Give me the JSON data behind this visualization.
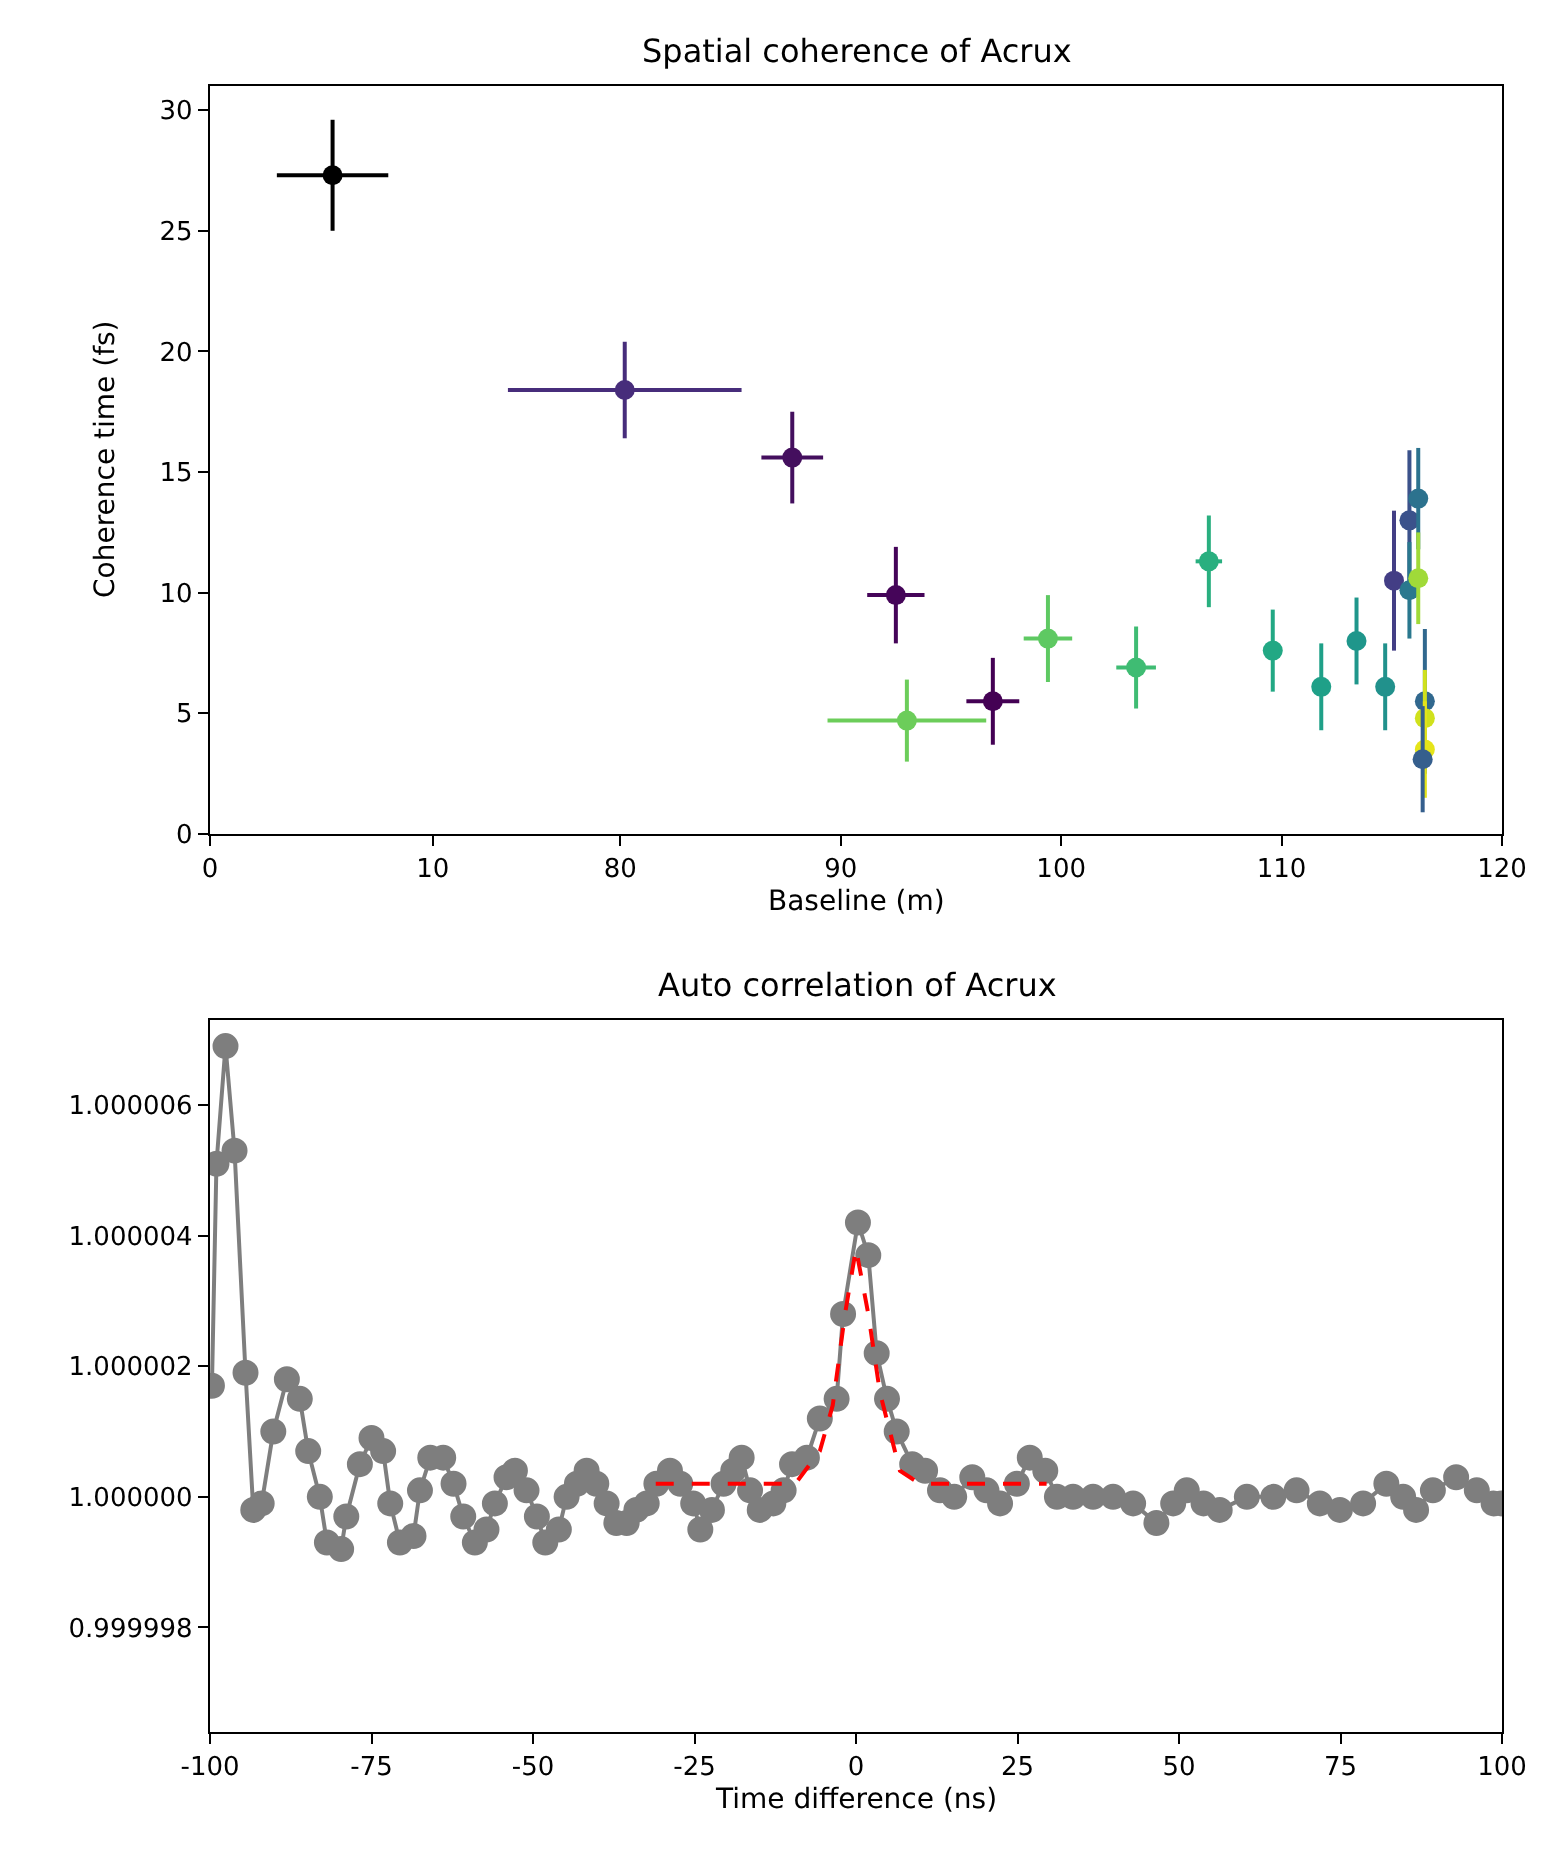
{
  "chart_data": [
    {
      "type": "scatter",
      "marker": "circle",
      "ylabel": "Coherence time (fs)",
      "xlim": [
        0,
        10.5
      ],
      "xticks": [
        0,
        10
      ],
      "ylim": [
        0,
        31
      ],
      "yticks": [
        0,
        5,
        10,
        15,
        20,
        25,
        30
      ],
      "series": [
        {
          "x": [
            5.5
          ],
          "values": [
            27.3
          ],
          "colors": [
            "#000000"
          ],
          "errors": [
            2.3
          ],
          "xerrors": [
            2.5
          ]
        }
      ]
    },
    {
      "type": "scatter",
      "marker": "circle",
      "title": "Spatial coherence of Acrux",
      "xlabel": "Baseline (m)",
      "xlim": [
        72,
        120
      ],
      "xticks": [
        80,
        90,
        100,
        110,
        120
      ],
      "ylim": [
        0,
        31
      ],
      "tick_labels": "x",
      "series": [
        {
          "x": [
            80.2,
            87.8,
            92.5,
            96.9,
            93.0,
            99.4,
            103.4,
            106.7,
            109.6,
            111.8,
            113.4,
            114.7,
            115.1,
            115.8,
            116.2,
            115.8,
            116.2,
            116.5,
            116.5,
            116.5,
            116.4
          ],
          "values": [
            18.4,
            15.6,
            9.9,
            5.5,
            4.7,
            8.1,
            6.9,
            11.3,
            7.6,
            6.1,
            8.0,
            6.1,
            10.5,
            13.0,
            13.9,
            10.1,
            10.6,
            5.5,
            4.8,
            3.5,
            3.1
          ],
          "colors": [
            "#472d7b",
            "#440f5e",
            "#450559",
            "#440154",
            "#6ccd5a",
            "#5ec962",
            "#3fbc73",
            "#29af7f",
            "#22a884",
            "#1fa088",
            "#1f968b",
            "#21918c",
            "#433e85",
            "#3b528b",
            "#2c728e",
            "#2a788e",
            "#a0da39",
            "#31688e",
            "#d0e11c",
            "#e5e419",
            "#355f8d"
          ],
          "errors": [
            2.0,
            1.9,
            2.0,
            1.8,
            1.7,
            1.8,
            1.7,
            1.9,
            1.7,
            1.8,
            1.8,
            1.8,
            2.9,
            2.9,
            2.1,
            2.0,
            1.9,
            3.0,
            2.0,
            2.0,
            2.2
          ],
          "xerrors": [
            5.3,
            1.4,
            1.3,
            1.2,
            3.6,
            1.1,
            0.9,
            0.6,
            0.4,
            null,
            null,
            null,
            null,
            null,
            null,
            null,
            null,
            null,
            null,
            null,
            null
          ]
        }
      ]
    },
    {
      "type": "line",
      "title": "Auto correlation of Acrux",
      "xlabel": "Time difference (ns)",
      "xlim": [
        -100,
        100
      ],
      "xticks": [
        -100,
        -75,
        -50,
        -25,
        0,
        25,
        50,
        75,
        100
      ],
      "ylim": [
        0.9999964,
        1.0000073
      ],
      "yticks": [
        0.999998,
        {
          "value": 1,
          "label": "1.000000"
        },
        1.000002,
        1.000004,
        1.000006
      ],
      "series": [
        {
          "color": "#000000",
          "marker": "circle",
          "line_style": "solid",
          "x": [
            -99.7,
            -99.0,
            -97.6,
            -96.2,
            -94.5,
            -93.3,
            -92.0,
            -90.2,
            -88.1,
            -86.1,
            -84.8,
            -83.0,
            -81.9,
            -79.7,
            -78.9,
            -76.8,
            -75.0,
            -73.2,
            -72.1,
            -70.6,
            -68.5,
            -67.5,
            -65.9,
            -63.9,
            -62.3,
            -60.8,
            -59.0,
            -57.2,
            -55.9,
            -54.1,
            -52.8,
            -51.0,
            -49.4,
            -48.1,
            -46.0,
            -44.8,
            -43.2,
            -41.7,
            -40.2,
            -38.6,
            -37.1,
            -35.5,
            -34.0,
            -32.4,
            -30.9,
            -28.8,
            -27.2,
            -25.2,
            -24.1,
            -22.3,
            -20.5,
            -19.0,
            -17.7,
            -16.4,
            -14.9,
            -12.8,
            -11.2,
            -9.9,
            -7.6,
            -5.6,
            -3.0,
            -2.0,
            0.3,
            1.9,
            3.2,
            4.8,
            6.3,
            8.7,
            10.7,
            13.0,
            15.2,
            18.0,
            20.2,
            22.3,
            24.9,
            26.9,
            29.3,
            31.1,
            33.6,
            36.7,
            39.8,
            42.9,
            46.5,
            49.1,
            51.2,
            53.8,
            56.3,
            60.5,
            64.6,
            68.2,
            71.8,
            74.9,
            78.5,
            82.1,
            84.7,
            86.7,
            89.3,
            92.9,
            96.1,
            98.7,
            99.9
          ],
          "values": [
            1.0000017,
            1.0000051,
            1.0000069,
            1.0000053,
            1.0000019,
            0.9999998,
            0.9999999,
            1.000001,
            1.0000018,
            1.0000015,
            1.0000007,
            1.0,
            0.9999993,
            0.9999992,
            0.9999997,
            1.0000005,
            1.0000009,
            1.0000007,
            0.9999999,
            0.9999993,
            0.9999994,
            1.0000001,
            1.0000006,
            1.0000006,
            1.0000002,
            0.9999997,
            0.9999993,
            0.9999995,
            0.9999999,
            1.0000003,
            1.0000004,
            1.0000001,
            0.9999997,
            0.9999993,
            0.9999995,
            1.0,
            1.0000002,
            1.0000004,
            1.0000002,
            0.9999999,
            0.9999996,
            0.9999996,
            0.9999998,
            0.9999999,
            1.0000002,
            1.0000004,
            1.0000002,
            0.9999999,
            0.9999995,
            0.9999998,
            1.0000002,
            1.0000004,
            1.0000006,
            1.0000001,
            0.9999998,
            0.9999999,
            1.0000001,
            1.0000005,
            1.0000006,
            1.0000012,
            1.0000015,
            1.0000028,
            1.0000042,
            1.0000037,
            1.0000022,
            1.0000015,
            1.000001,
            1.0000005,
            1.0000004,
            1.0000001,
            1.0,
            1.0000003,
            1.0000001,
            0.9999999,
            1.0000002,
            1.0000006,
            1.0000004,
            1.0,
            1.0,
            1.0,
            1.0,
            0.9999999,
            0.9999996,
            0.9999999,
            1.0000001,
            0.9999999,
            0.9999998,
            1.0,
            1.0,
            1.0000001,
            0.9999999,
            0.9999998,
            0.9999999,
            1.0000002,
            1.0,
            0.9999998,
            1.0000001,
            1.0000003,
            1.0000001,
            0.9999999,
            0.9999999
          ]
        },
        {
          "color": "#ff0000",
          "marker": "none",
          "line_style": "dashed",
          "x": [
            -31.0,
            -9.4,
            -5.6,
            -3.6,
            -1.7,
            0.0,
            1.9,
            3.7,
            6.8,
            9.9,
            29.5
          ],
          "values": [
            1.0000002,
            1.0000002,
            1.0000007,
            1.0000014,
            1.0000028,
            1.0000038,
            1.0000028,
            1.0000016,
            1.0000004,
            1.0000002,
            1.0000002
          ]
        }
      ]
    }
  ]
}
